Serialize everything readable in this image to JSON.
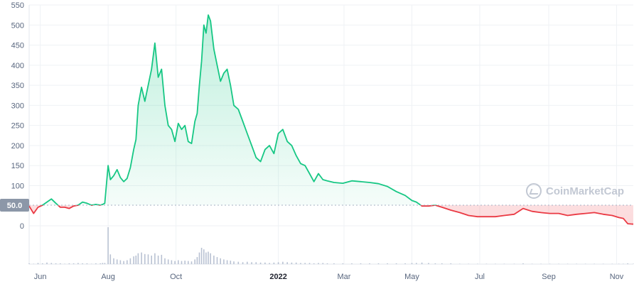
{
  "chart_data": {
    "type": "line",
    "title": "",
    "xlabel": "",
    "ylabel": "",
    "reference_value": 50,
    "reference_label": "50.0",
    "ylim": [
      0,
      550
    ],
    "y_ticks": [
      "0",
      "100",
      "150",
      "200",
      "250",
      "300",
      "350",
      "400",
      "450",
      "500",
      "550"
    ],
    "y_tick_values": [
      0,
      100,
      150,
      200,
      250,
      300,
      350,
      400,
      450,
      500,
      550
    ],
    "x_ticks": [
      {
        "label": "Jun",
        "date": "2021-06-01",
        "bold": false
      },
      {
        "label": "Aug",
        "date": "2021-08-01",
        "bold": false
      },
      {
        "label": "Oct",
        "date": "2021-10-01",
        "bold": false
      },
      {
        "label": "2022",
        "date": "2022-01-01",
        "bold": true
      },
      {
        "label": "Mar",
        "date": "2022-03-01",
        "bold": false
      },
      {
        "label": "May",
        "date": "2022-05-01",
        "bold": false
      },
      {
        "label": "Jul",
        "date": "2022-07-01",
        "bold": false
      },
      {
        "label": "Sep",
        "date": "2022-09-01",
        "bold": false
      },
      {
        "label": "Nov",
        "date": "2022-11-01",
        "bold": false
      }
    ],
    "xlim": [
      "2021-05-22",
      "2022-11-16"
    ],
    "grid": true,
    "colors": {
      "up": "#16c784",
      "down": "#ea3943",
      "grid": "#eff2f5",
      "reference_line": "#a6b0c3",
      "reference_badge": "#8c97a8",
      "volume": "#b9c2d3"
    },
    "x": [
      "2021-05-22",
      "2021-05-26",
      "2021-05-30",
      "2021-06-03",
      "2021-06-07",
      "2021-06-11",
      "2021-06-15",
      "2021-06-19",
      "2021-06-23",
      "2021-06-27",
      "2021-07-01",
      "2021-07-05",
      "2021-07-09",
      "2021-07-13",
      "2021-07-17",
      "2021-07-21",
      "2021-07-25",
      "2021-07-27",
      "2021-07-29",
      "2021-08-01",
      "2021-08-03",
      "2021-08-06",
      "2021-08-09",
      "2021-08-12",
      "2021-08-15",
      "2021-08-18",
      "2021-08-21",
      "2021-08-24",
      "2021-08-26",
      "2021-08-28",
      "2021-08-31",
      "2021-09-03",
      "2021-09-06",
      "2021-09-09",
      "2021-09-12",
      "2021-09-15",
      "2021-09-18",
      "2021-09-21",
      "2021-09-24",
      "2021-09-27",
      "2021-09-30",
      "2021-10-03",
      "2021-10-06",
      "2021-10-09",
      "2021-10-12",
      "2021-10-15",
      "2021-10-18",
      "2021-10-20",
      "2021-10-22",
      "2021-10-24",
      "2021-10-26",
      "2021-10-28",
      "2021-10-30",
      "2021-11-01",
      "2021-11-04",
      "2021-11-07",
      "2021-11-10",
      "2021-11-13",
      "2021-11-16",
      "2021-11-19",
      "2021-11-22",
      "2021-11-26",
      "2021-11-30",
      "2021-12-04",
      "2021-12-08",
      "2021-12-12",
      "2021-12-16",
      "2021-12-20",
      "2021-12-24",
      "2021-12-28",
      "2022-01-01",
      "2022-01-05",
      "2022-01-09",
      "2022-01-13",
      "2022-01-17",
      "2022-01-21",
      "2022-01-25",
      "2022-01-29",
      "2022-02-02",
      "2022-02-06",
      "2022-02-10",
      "2022-02-14",
      "2022-02-20",
      "2022-02-28",
      "2022-03-08",
      "2022-03-16",
      "2022-03-24",
      "2022-04-01",
      "2022-04-09",
      "2022-04-17",
      "2022-04-25",
      "2022-05-01",
      "2022-05-05",
      "2022-05-10",
      "2022-05-16",
      "2022-05-22",
      "2022-05-28",
      "2022-06-05",
      "2022-06-13",
      "2022-06-21",
      "2022-06-29",
      "2022-07-07",
      "2022-07-15",
      "2022-07-23",
      "2022-08-01",
      "2022-08-09",
      "2022-08-17",
      "2022-08-25",
      "2022-09-02",
      "2022-09-10",
      "2022-09-18",
      "2022-09-26",
      "2022-10-04",
      "2022-10-12",
      "2022-10-20",
      "2022-10-28",
      "2022-11-03",
      "2022-11-07",
      "2022-11-11",
      "2022-11-16"
    ],
    "series": [
      {
        "values": [
          48,
          30,
          45,
          50,
          58,
          66,
          55,
          45,
          45,
          42,
          48,
          50,
          58,
          55,
          50,
          52,
          50,
          52,
          55,
          150,
          115,
          125,
          140,
          120,
          110,
          118,
          145,
          190,
          215,
          300,
          345,
          310,
          350,
          390,
          455,
          370,
          390,
          300,
          250,
          240,
          210,
          255,
          240,
          250,
          210,
          205,
          260,
          280,
          350,
          410,
          500,
          480,
          525,
          510,
          440,
          400,
          360,
          380,
          390,
          350,
          300,
          290,
          260,
          230,
          200,
          170,
          160,
          190,
          200,
          180,
          230,
          240,
          210,
          200,
          175,
          155,
          150,
          130,
          110,
          130,
          115,
          112,
          108,
          106,
          112,
          110,
          108,
          105,
          98,
          85,
          75,
          62,
          58,
          48,
          48,
          50,
          45,
          38,
          32,
          25,
          22,
          22,
          22,
          25,
          28,
          42,
          35,
          32,
          30,
          30,
          25,
          28,
          30,
          32,
          28,
          25,
          20,
          18,
          5,
          4
        ]
      }
    ],
    "volume_values": [
      2,
      1,
      3,
      2,
      4,
      3,
      2,
      2,
      1,
      2,
      2,
      3,
      2,
      2,
      1,
      2,
      2,
      3,
      3,
      95,
      25,
      15,
      12,
      10,
      8,
      10,
      15,
      20,
      22,
      28,
      30,
      26,
      25,
      22,
      28,
      22,
      24,
      15,
      12,
      10,
      8,
      10,
      8,
      9,
      8,
      7,
      12,
      18,
      30,
      42,
      38,
      30,
      32,
      28,
      22,
      18,
      15,
      12,
      10,
      9,
      7,
      6,
      5,
      6,
      5,
      5,
      4,
      4,
      3,
      4,
      5,
      6,
      5,
      4,
      4,
      3,
      3,
      3,
      2,
      3,
      3,
      2,
      2,
      2,
      2,
      2,
      2,
      2,
      2,
      2,
      2,
      3,
      3,
      4,
      3,
      2,
      2,
      2,
      1,
      1,
      1,
      1,
      1,
      1,
      1,
      2,
      1,
      1,
      1,
      1,
      1,
      1,
      1,
      1,
      1,
      1,
      1,
      1,
      2,
      1
    ]
  },
  "watermark": {
    "text": "CoinMarketCap",
    "icon": "coinmarketcap-logo-icon"
  }
}
